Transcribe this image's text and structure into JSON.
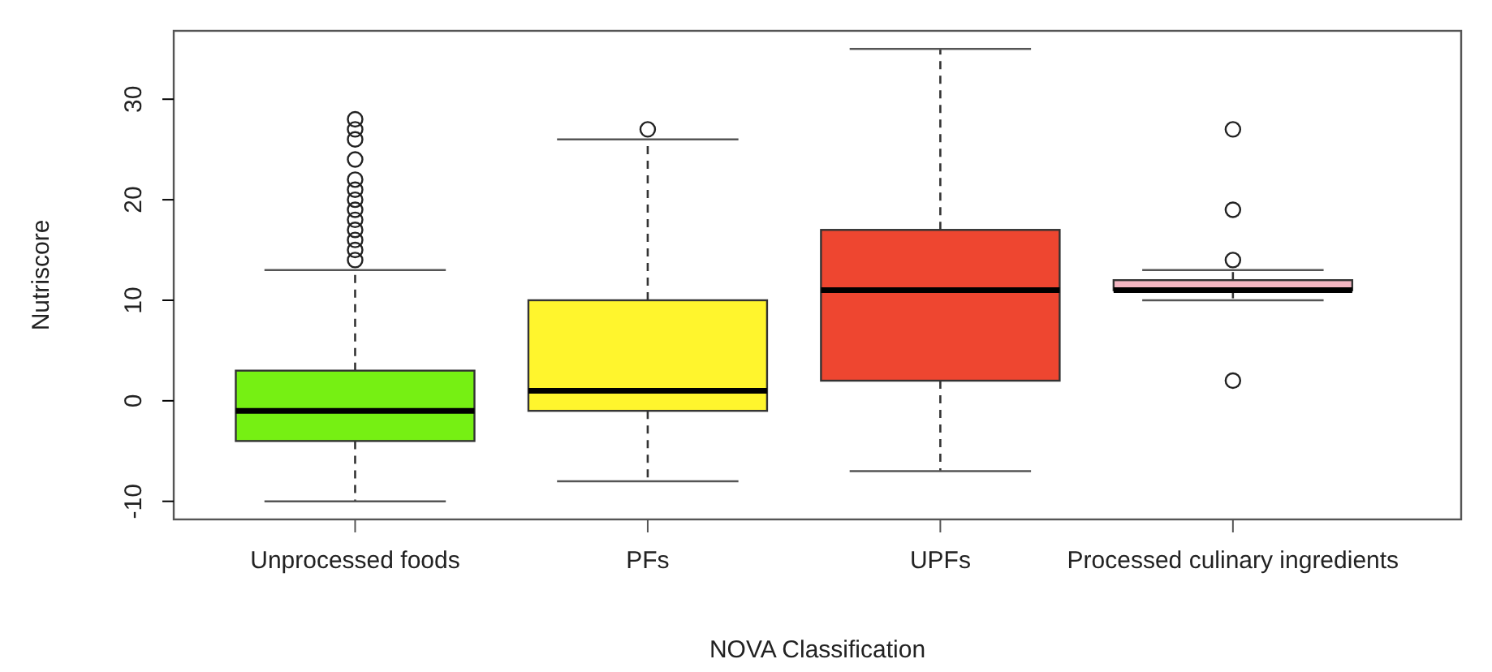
{
  "chart_data": {
    "type": "box",
    "xlabel": "NOVA Classification",
    "ylabel": "Nutriscore",
    "categories": [
      "Unprocessed foods",
      "PFs",
      "UPFs",
      "Processed culinary ingredients"
    ],
    "colors": [
      "#76f013",
      "#fff52d",
      "#ee4630",
      "#f4b6c2"
    ],
    "boxes": [
      {
        "low": -10,
        "q1": -4,
        "median": -1,
        "q3": 3,
        "high": 13,
        "outliers": [
          14,
          15,
          16,
          17,
          18,
          19,
          20,
          21,
          22,
          24,
          26,
          27,
          28
        ]
      },
      {
        "low": -8,
        "q1": -1,
        "median": 1,
        "q3": 10,
        "high": 26,
        "outliers": [
          27
        ]
      },
      {
        "low": -7,
        "q1": 2,
        "median": 11,
        "q3": 17,
        "high": 35
      },
      {
        "low": 10,
        "q1": 11,
        "median": 11,
        "q3": 12,
        "high": 13,
        "outliers": [
          2,
          14,
          19,
          27
        ]
      }
    ],
    "ylim": [
      -11.8,
      36.8
    ],
    "yticks": [
      -10,
      0,
      10,
      20,
      30
    ],
    "grid": false
  }
}
